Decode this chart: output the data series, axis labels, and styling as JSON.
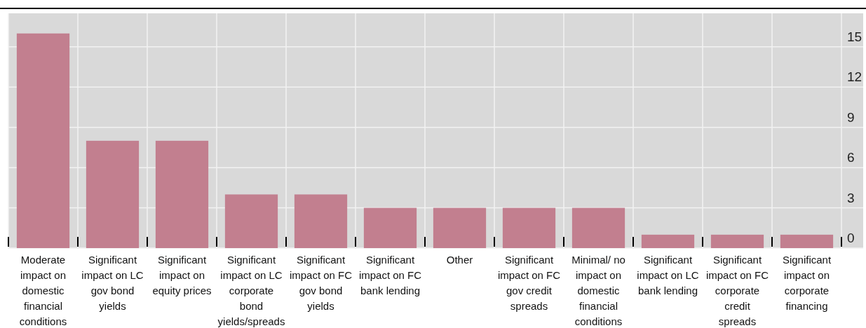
{
  "chart_data": {
    "type": "bar",
    "categories": [
      "Moderate impact on domestic financial conditions",
      "Significant impact on LC gov bond yields",
      "Significant impact on equity prices",
      "Significant impact on LC corporate bond yields/spreads",
      "Significant impact on FC gov bond yields",
      "Significant impact on FC bank lending",
      "Other",
      "Significant impact on FC gov credit spreads",
      "Minimal/ no impact on domestic financial conditions",
      "Significant impact on LC bank lending",
      "Significant impact on FC corporate credit spreads",
      "Significant impact on corporate financing"
    ],
    "values": [
      16,
      8,
      8,
      4,
      4,
      3,
      3,
      3,
      3,
      1,
      1,
      1
    ],
    "color": "#c27f8f",
    "ylim": [
      0,
      17.5
    ],
    "yticks": [
      0,
      3,
      6,
      9,
      12,
      15
    ],
    "grid": true
  }
}
